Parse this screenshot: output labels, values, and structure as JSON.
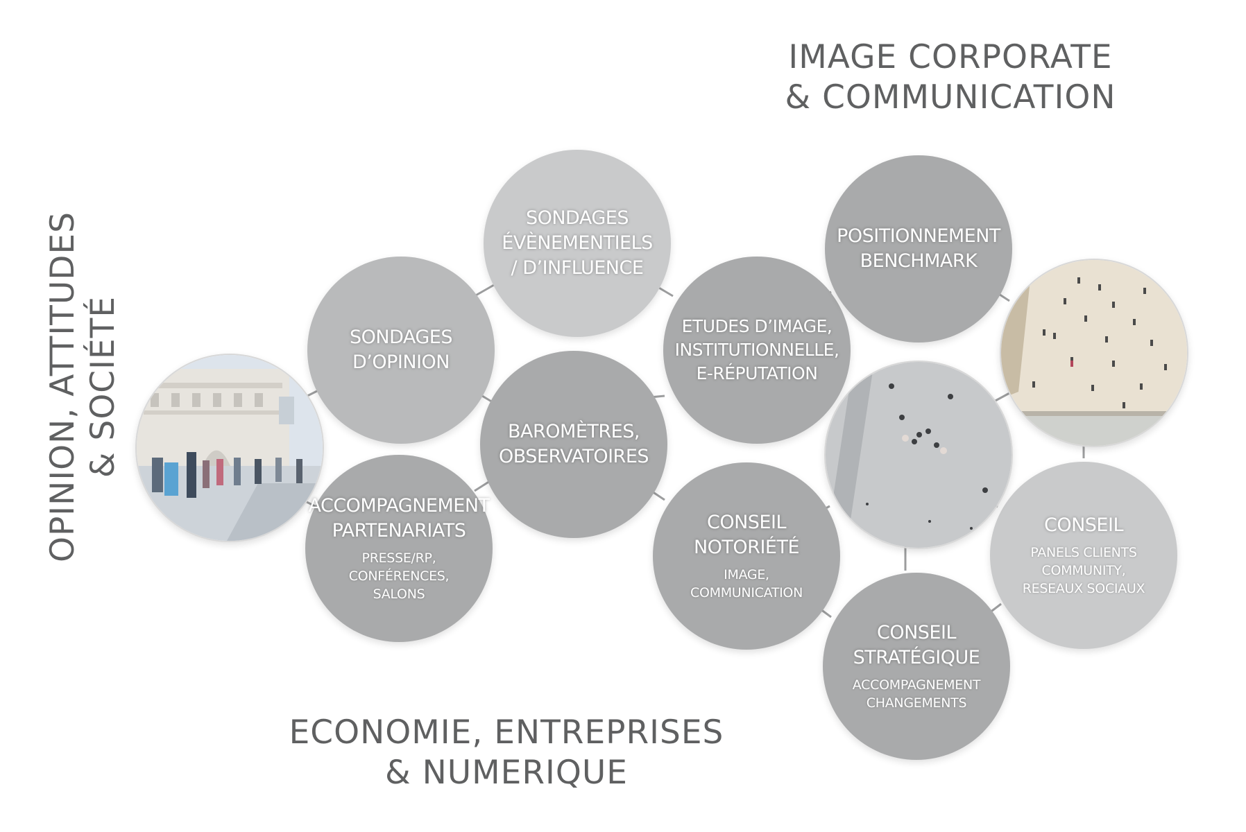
{
  "headings": {
    "top_right": [
      "IMAGE CORPORATE",
      "& COMMUNICATION"
    ],
    "left": [
      "OPINION, ATTITUDES",
      "& SOCIÉTÉ"
    ],
    "bottom": [
      "ECONOMIE, ENTREPRISES",
      "& NUMERIQUE"
    ]
  },
  "bubbles": {
    "sondages_evenementiels": {
      "title": [
        "SONDAGES",
        "ÉVÈNEMENTIELS",
        "/ D’INFLUENCE"
      ]
    },
    "sondages_opinion": {
      "title": [
        "SONDAGES",
        "D’OPINION"
      ]
    },
    "barometres": {
      "title": [
        "BAROMÈTRES,",
        "OBSERVATOIRES"
      ]
    },
    "accompagnement": {
      "title": [
        "ACCOMPAGNEMENT",
        "PARTENARIATS"
      ],
      "sub": [
        "PRESSE/RP,",
        "CONFÉRENCES,",
        "SALONS"
      ]
    },
    "etudes_image": {
      "title": [
        "ETUDES D’IMAGE,",
        "INSTITUTIONNELLE,",
        "E-RÉPUTATION"
      ]
    },
    "positionnement": {
      "title": [
        "POSITIONNEMENT",
        "BENCHMARK"
      ]
    },
    "conseil_notoriete": {
      "title": [
        "CONSEIL",
        "NOTORIÉTÉ"
      ],
      "sub": [
        "IMAGE,",
        "COMMUNICATION"
      ]
    },
    "conseil_strategique": {
      "title": [
        "CONSEIL",
        "STRATÉGIQUE"
      ],
      "sub": [
        "ACCOMPAGNEMENT",
        "CHANGEMENTS"
      ]
    },
    "conseil": {
      "title": [
        "CONSEIL"
      ],
      "sub": [
        "PANELS CLIENTS",
        "COMMUNITY,",
        "RESEAUX SOCIAUX"
      ]
    }
  },
  "photos": [
    "louvre-crowd-photo",
    "plaza-aerial-photo",
    "park-crowd-photo"
  ]
}
